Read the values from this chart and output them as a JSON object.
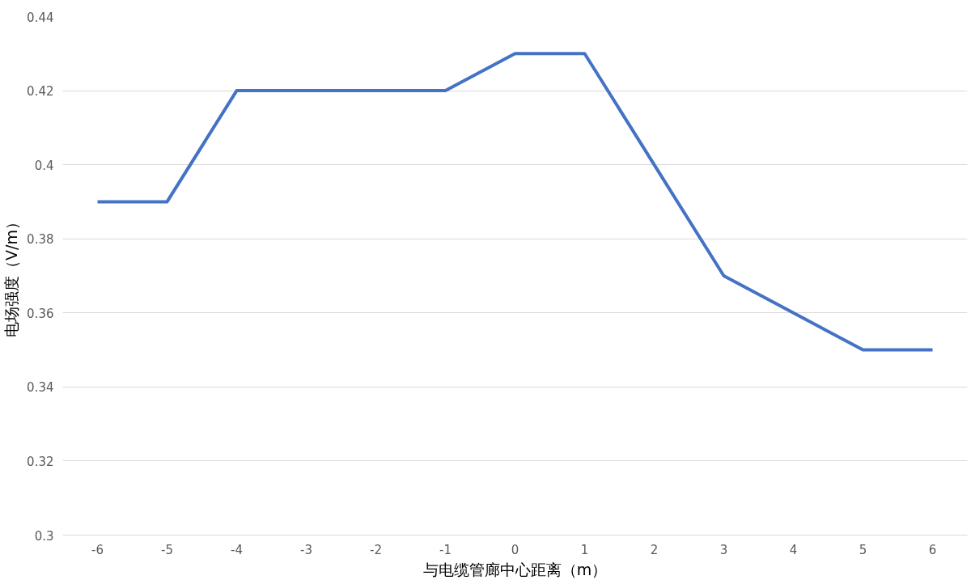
{
  "chart_data": {
    "type": "line",
    "xlabel": "与电缆管廊中心距离（m）",
    "ylabel": "电场强度（V/m）",
    "categories": [
      "-6",
      "-5",
      "-4",
      "-3",
      "-2",
      "-1",
      "0",
      "1",
      "2",
      "3",
      "4",
      "5",
      "6"
    ],
    "series": [
      {
        "color": "#4472c4",
        "values": [
          0.39,
          0.39,
          0.42,
          0.42,
          0.42,
          0.42,
          0.43,
          0.43,
          0.4,
          0.37,
          0.36,
          0.35,
          0.35
        ]
      }
    ],
    "ylim": [
      0.3,
      0.44
    ],
    "yticks": [
      0.3,
      0.32,
      0.34,
      0.36,
      0.38,
      0.4,
      0.42,
      0.44
    ],
    "grid": "y",
    "marker": "none",
    "line_style": "solid"
  }
}
